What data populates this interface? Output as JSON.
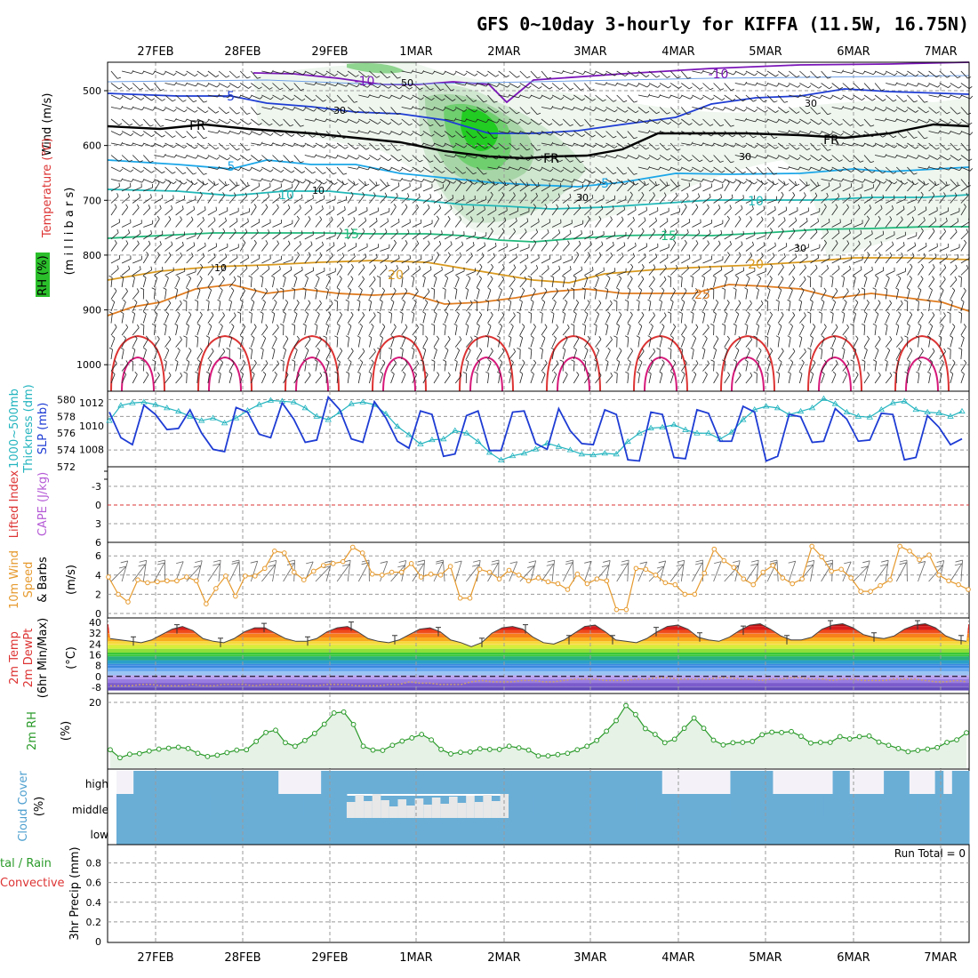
{
  "title": "GFS 0~10day 3-hourly for KIFFA (11.5W, 16.75N)",
  "dates": [
    "27FEB",
    "28FEB",
    "29FEB",
    "1MAR",
    "2MAR",
    "3MAR",
    "4MAR",
    "5MAR",
    "6MAR",
    "7MAR"
  ],
  "colors": {
    "purple": "#7b16b8",
    "blue": "#1e3cd4",
    "black": "#000000",
    "lightblue": "#1aa6e8",
    "teal": "#22b8b8",
    "green": "#1fb87a",
    "orange": "#d99a1f",
    "darkorange": "#e07c20",
    "red": "#dd3333",
    "magenta": "#d6197a",
    "slp": "#1e3cd4",
    "thick": "#23b4bf",
    "wind10": "#e69a2e",
    "rh": "#2a9a2a",
    "cloud": "#6aaed6",
    "precip_rain": "#2a9a2a",
    "precip_conv": "#dd3333"
  },
  "upper_panel": {
    "ylabels": [
      "Wind (m/s)",
      "Temperature (°C)",
      "RH (%)",
      "(m i l l i b a r s)"
    ],
    "yticks": [
      "500",
      "600",
      "700",
      "800",
      "900",
      "1000"
    ],
    "contour_labels": {
      "t_m10a": "-10",
      "t_m10b": "-10",
      "t_m5": "-5",
      "fr1": "FR",
      "fr2": "FR",
      "fr3": "FR",
      "t_5a": "5",
      "t_5b": "-5",
      "t_10a": "10",
      "t_10b": "10",
      "t_15a": "15",
      "t_15b": "15",
      "t_20a": "20",
      "t_20b": "20",
      "t_25": "25",
      "rh_50": "50",
      "rh_30a": "30",
      "rh_30b": "30",
      "rh_30c": "30",
      "rh_30d": "30",
      "rh_30e": "30",
      "rh_10a": "10",
      "rh_10b": "10"
    }
  },
  "slp_panel": {
    "left_labels": [
      "1000~500mb",
      "Thickness (dm)",
      "SLP (mb)"
    ],
    "yticks_thickness": [
      "580",
      "578",
      "576",
      "574",
      "572"
    ],
    "yticks_slp": [
      "1012",
      "1010",
      "1008"
    ]
  },
  "li_panel": {
    "labels": [
      "Lifted Index",
      "CAPE (J/kg)"
    ],
    "yticks": [
      "-3",
      "0",
      "3",
      "6"
    ]
  },
  "wind10_panel": {
    "labels": [
      "10m Wind",
      "Speed",
      "& Barbs",
      "(m/s)"
    ],
    "yticks": [
      "6",
      "4",
      "2",
      "0"
    ]
  },
  "temp_panel": {
    "labels": [
      "2m Temp",
      "2m DewPt",
      "(6hr Min/Max)",
      "(°C)"
    ],
    "yticks": [
      "40",
      "32",
      "24",
      "16",
      "8",
      "0",
      "-8"
    ]
  },
  "rh_panel": {
    "labels": [
      "2m RH",
      "(%)"
    ],
    "yticks": [
      "20"
    ]
  },
  "cloud_panel": {
    "labels": [
      "Cloud Cover",
      "(%)"
    ],
    "levels": [
      "high",
      "middle",
      "low"
    ]
  },
  "precip_panel": {
    "labels": [
      "tal / Rain",
      "Convective",
      "3hr Precip (mm)"
    ],
    "yticks": [
      "0.8",
      "0.6",
      "0.4",
      "0.2",
      "0"
    ],
    "run_total": "Run Total = 0"
  },
  "chart_data": [
    {
      "type": "line",
      "title": "1000~500mb Thickness (dm) / SLP (mb)",
      "x_unit": "3-hourly steps from 26FEB 18Z",
      "series": [
        {
          "name": "SLP (mb)",
          "ylim": [
            1006.5,
            1013
          ],
          "values": [
            1011.2,
            1009.0,
            1008.4,
            1011.8,
            1011.0,
            1009.7,
            1009.8,
            1011.4,
            1009.4,
            1008.0,
            1007.8,
            1011.6,
            1011.2,
            1009.3,
            1009.0,
            1012.0,
            1010.6,
            1008.6,
            1008.8,
            1012.5,
            1011.4,
            1008.9,
            1008.6,
            1012.1,
            1010.7,
            1008.7,
            1008.1,
            1011.3,
            1011.0,
            1007.4,
            1007.6,
            1010.9,
            1011.3,
            1007.9,
            1007.9,
            1011.2,
            1011.3,
            1008.5,
            1008.0,
            1011.5,
            1009.6,
            1008.5,
            1008.4,
            1011.4,
            1011.0,
            1007.1,
            1007.0,
            1011.2,
            1011.0,
            1007.3,
            1007.2,
            1011.4,
            1011.1,
            1008.7,
            1008.7,
            1011.7,
            1011.2,
            1007.0,
            1007.4,
            1011.0,
            1010.8,
            1008.6,
            1008.7,
            1011.5,
            1010.6,
            1008.7,
            1008.8,
            1011.1,
            1011.0,
            1007.1,
            1007.3,
            1010.9,
            1009.9,
            1008.4,
            1008.9
          ]
        },
        {
          "name": "1000~500mb Thickness (dm)",
          "ylim": [
            572,
            581
          ],
          "values": [
            577.5,
            579.3,
            579.6,
            579.7,
            579.4,
            579.0,
            578.6,
            578.0,
            577.5,
            577.8,
            577.2,
            577.8,
            578.7,
            579.4,
            579.9,
            579.8,
            579.7,
            579.0,
            578.0,
            577.6,
            578.5,
            579.5,
            579.7,
            579.4,
            578.3,
            576.8,
            575.8,
            574.7,
            575.2,
            575.3,
            576.3,
            576.0,
            575.0,
            573.7,
            572.8,
            573.3,
            573.6,
            574.1,
            574.8,
            574.4,
            574.0,
            573.5,
            573.4,
            573.6,
            573.5,
            575.0,
            576.0,
            576.6,
            576.7,
            577.0,
            576.4,
            576.0,
            576.0,
            575.3,
            576.1,
            577.6,
            578.8,
            579.2,
            579.0,
            578.2,
            578.6,
            579.0,
            580.1,
            579.5,
            578.5,
            578.0,
            577.9,
            578.8,
            579.6,
            579.8,
            578.8,
            578.5,
            578.4,
            578.0,
            578.6
          ]
        }
      ]
    },
    {
      "type": "line",
      "title": "10m Wind Speed (m/s)",
      "ylim": [
        0,
        7.5
      ],
      "values": [
        3.8,
        2.0,
        1.2,
        3.5,
        3.2,
        3.3,
        3.4,
        3.4,
        3.8,
        3.4,
        1.0,
        2.6,
        3.9,
        1.8,
        3.9,
        3.9,
        4.7,
        6.5,
        6.3,
        4.3,
        3.5,
        4.4,
        5.0,
        5.2,
        5.4,
        6.9,
        6.3,
        4.1,
        4.0,
        4.3,
        4.3,
        5.2,
        3.8,
        4.1,
        4.0,
        4.9,
        1.6,
        1.6,
        4.6,
        4.3,
        3.6,
        4.5,
        4.0,
        3.4,
        3.7,
        3.3,
        3.1,
        2.5,
        4.1,
        3.1,
        3.6,
        3.4,
        0.4,
        0.4,
        4.7,
        4.6,
        4.0,
        3.2,
        3.0,
        2.0,
        2.0,
        4.2,
        6.7,
        5.5,
        4.8,
        3.6,
        3.0,
        4.3,
        5.0,
        3.7,
        3.1,
        3.6,
        7.0,
        5.9,
        4.4,
        4.6,
        3.7,
        2.3,
        2.3,
        2.9,
        3.5,
        7.0,
        6.5,
        5.6,
        6.1,
        4.0,
        3.4,
        3.0,
        2.5
      ]
    },
    {
      "type": "area",
      "title": "2m Temp / 2m DewPt (°C)",
      "ylim": [
        -12,
        42
      ],
      "temp": [
        28,
        27,
        26,
        25,
        27,
        31,
        35,
        37,
        34,
        28,
        26,
        25,
        28,
        33,
        36,
        36,
        32,
        28,
        26,
        26,
        28,
        33,
        36,
        37,
        33,
        28,
        26,
        25,
        27,
        31,
        35,
        36,
        33,
        27,
        25,
        22,
        25,
        32,
        36,
        37,
        35,
        29,
        25,
        24,
        27,
        32,
        37,
        38,
        33,
        27,
        26,
        25,
        28,
        33,
        37,
        38,
        35,
        29,
        27,
        26,
        29,
        34,
        38,
        39,
        35,
        30,
        27,
        27,
        29,
        35,
        38,
        39,
        36,
        31,
        29,
        28,
        30,
        35,
        38,
        39,
        36,
        30,
        27,
        26
      ],
      "dewpoint": [
        -7,
        -7,
        -7,
        -6,
        -6,
        -7,
        -7,
        -7,
        -6,
        -7,
        -7,
        -6,
        -6,
        -6,
        -7,
        -6,
        -6,
        -6,
        -6,
        -7,
        -7,
        -6,
        -6,
        -6,
        -7,
        -7,
        -7,
        -6,
        -6,
        -4,
        -5,
        -5,
        -6,
        -6,
        -6,
        -4,
        -3,
        -4,
        -4,
        -4,
        -3,
        -3,
        -4,
        -4,
        -3,
        -2,
        -2,
        -2,
        -3,
        -3,
        -3,
        -2,
        -2,
        -1,
        -1,
        -2,
        -2,
        -2,
        -2,
        -1,
        -1,
        -2,
        -2,
        -3,
        -2,
        -2,
        -1,
        -1,
        -2,
        -2,
        -3,
        -2,
        -2,
        -3,
        -3,
        -3,
        -2,
        -2,
        -2,
        -3,
        -4,
        -4,
        -3,
        -4
      ]
    },
    {
      "type": "line",
      "title": "2m RH (%)",
      "ylim": [
        0,
        21
      ],
      "values": [
        5.2,
        2.7,
        3.8,
        4.0,
        4.8,
        5.4,
        5.7,
        6.0,
        5.6,
        4.1,
        3.1,
        3.5,
        4.3,
        5.1,
        5.2,
        7.8,
        10.6,
        11.3,
        7.4,
        6.3,
        8.1,
        10.3,
        13.2,
        16.7,
        17.0,
        13.1,
        6.3,
        5.1,
        5.0,
        6.6,
        7.9,
        8.9,
        10.0,
        8.3,
        5.3,
        3.9,
        4.4,
        4.5,
        5.5,
        5.3,
        5.3,
        6.3,
        5.8,
        5.1,
        3.3,
        3.3,
        3.7,
        4.1,
        5.2,
        6.3,
        8.1,
        11.0,
        14.3,
        19.0,
        16.2,
        11.8,
        10.0,
        7.4,
        8.5,
        11.9,
        15.1,
        11.9,
        8.2,
        6.7,
        7.4,
        7.5,
        7.8,
        9.9,
        10.7,
        10.6,
        10.9,
        9.4,
        7.3,
        7.5,
        7.5,
        9.3,
        8.6,
        9.3,
        9.5,
        7.6,
        6.6,
        5.6,
        4.6,
        5.0,
        5.4,
        5.9,
        7.5,
        8.3,
        10.5
      ]
    },
    {
      "type": "bar",
      "title": "Cloud Cover (%)",
      "high_clear_steps": [
        0,
        1,
        19,
        20,
        21,
        22,
        23,
        64,
        65,
        66,
        67,
        68,
        69,
        70,
        71,
        77,
        78,
        79,
        80,
        81,
        82,
        83,
        86,
        87,
        88,
        89,
        93,
        94,
        95,
        97
      ],
      "middle_clear_steps": [
        27,
        28,
        29,
        30,
        31,
        32,
        33,
        34,
        35,
        36,
        37,
        38,
        39,
        40,
        41,
        42,
        43,
        44,
        45
      ]
    },
    {
      "type": "bar",
      "title": "3hr Precip (mm)",
      "ylim": [
        0,
        1.0
      ],
      "values": []
    }
  ]
}
